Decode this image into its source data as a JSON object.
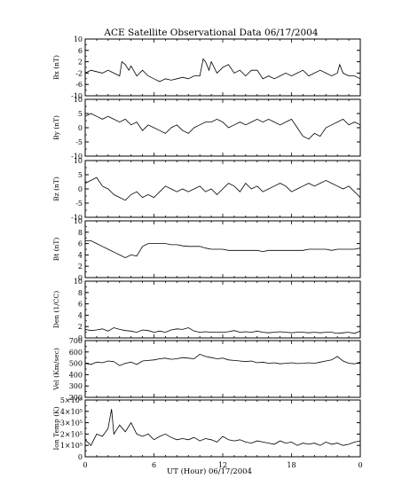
{
  "chart_data": {
    "type": "line",
    "title": "ACE Satellite Observational Data   06/17/2004",
    "xlabel": "UT (Hour)   06/17/2004",
    "x_range": [
      0,
      24
    ],
    "x_tick_labels": [
      "0",
      "6",
      "12",
      "18",
      "0"
    ],
    "grid": false,
    "panels": [
      {
        "id": "bx",
        "ylabel": "Bx (nT)",
        "ylim": [
          -10,
          10
        ],
        "y_tick_labels": [
          "10",
          "6",
          "2",
          "-2",
          "-6",
          "-10"
        ],
        "series": [
          {
            "x": [
              0,
              0.5,
              1,
              1.5,
              2,
              2.5,
              3,
              3.2,
              3.5,
              3.8,
              4,
              4.5,
              5,
              5.5,
              6,
              6.5,
              7,
              7.5,
              8,
              8.5,
              9,
              9.5,
              10,
              10.3,
              10.5,
              10.8,
              11,
              11.5,
              12,
              12.5,
              13,
              13.5,
              14,
              14.5,
              15,
              15.5,
              16,
              16.5,
              17,
              17.5,
              18,
              18.5,
              19,
              19.5,
              20,
              20.5,
              21,
              21.5,
              22,
              22.2,
              22.5,
              23,
              23.5,
              24
            ],
            "y": [
              -2,
              -1,
              -1.5,
              -2,
              -1,
              -2,
              -3,
              2,
              1,
              -1,
              0.5,
              -3,
              -1,
              -3,
              -4,
              -5,
              -4,
              -4.5,
              -4,
              -3.5,
              -4,
              -3,
              -3,
              3,
              2,
              -1,
              2,
              -2,
              0,
              1,
              -2,
              -1,
              -3,
              -1,
              -1,
              -4,
              -3,
              -4,
              -3,
              -2,
              -3,
              -2,
              -1,
              -3,
              -2,
              -1,
              -2,
              -3,
              -2,
              1,
              -2,
              -3,
              -3,
              -4
            ]
          }
        ]
      },
      {
        "id": "by",
        "ylabel": "By (nT)",
        "ylim": [
          -10,
          10
        ],
        "y_tick_labels": [
          "10",
          "5",
          "0",
          "-5",
          "-10"
        ],
        "series": [
          {
            "x": [
              0,
              0.5,
              1,
              1.5,
              2,
              2.5,
              3,
              3.5,
              4,
              4.5,
              5,
              5.5,
              6,
              6.5,
              7,
              7.5,
              8,
              8.5,
              9,
              9.5,
              10,
              10.5,
              11,
              11.5,
              12,
              12.5,
              13,
              13.5,
              14,
              14.5,
              15,
              15.5,
              16,
              16.5,
              17,
              17.5,
              18,
              18.5,
              19,
              19.5,
              20,
              20.5,
              21,
              21.5,
              22,
              22.5,
              23,
              23.5,
              24
            ],
            "y": [
              4,
              5,
              4,
              3,
              4,
              3,
              2,
              3,
              1,
              2,
              -1,
              1,
              0,
              -1,
              -2,
              0,
              1,
              -1,
              -2,
              0,
              1,
              2,
              2,
              3,
              2,
              0,
              1,
              2,
              1,
              2,
              3,
              2,
              3,
              2,
              1,
              2,
              3,
              0,
              -3,
              -4,
              -2,
              -3,
              0,
              1,
              2,
              3,
              1,
              2,
              1
            ]
          }
        ]
      },
      {
        "id": "bz",
        "ylabel": "Bz (nT)",
        "ylim": [
          -10,
          10
        ],
        "y_tick_labels": [
          "10",
          "5",
          "0",
          "-5",
          "-10"
        ],
        "series": [
          {
            "x": [
              0,
              0.5,
              1,
              1.5,
              2,
              2.5,
              3,
              3.5,
              4,
              4.5,
              5,
              5.5,
              6,
              6.5,
              7,
              7.5,
              8,
              8.5,
              9,
              9.5,
              10,
              10.5,
              11,
              11.5,
              12,
              12.5,
              13,
              13.5,
              14,
              14.5,
              15,
              15.5,
              16,
              16.5,
              17,
              17.5,
              18,
              18.5,
              19,
              19.5,
              20,
              20.5,
              21,
              21.5,
              22,
              22.5,
              23,
              23.5,
              24
            ],
            "y": [
              2,
              3,
              4,
              1,
              0,
              -2,
              -3,
              -4,
              -2,
              -1,
              -3,
              -2,
              -3,
              -1,
              1,
              0,
              -1,
              0,
              -1,
              0,
              1,
              -1,
              0,
              -2,
              0,
              2,
              1,
              -1,
              2,
              0,
              1,
              -1,
              0,
              1,
              2,
              1,
              -1,
              0,
              1,
              2,
              1,
              2,
              3,
              2,
              1,
              0,
              1,
              -1,
              -3
            ]
          }
        ]
      },
      {
        "id": "bt",
        "ylabel": "Bt (nT)",
        "ylim": [
          0,
          10
        ],
        "y_tick_labels": [
          "10",
          "8",
          "6",
          "4",
          "2",
          "0"
        ],
        "series": [
          {
            "x": [
              0,
              0.5,
              1,
              1.5,
              2,
              2.5,
              3,
              3.5,
              4,
              4.5,
              5,
              5.5,
              6,
              6.5,
              7,
              7.5,
              8,
              8.5,
              9,
              9.5,
              10,
              10.5,
              11,
              11.5,
              12,
              12.5,
              13,
              13.5,
              14,
              14.5,
              15,
              15.5,
              16,
              16.5,
              17,
              17.5,
              18,
              18.5,
              19,
              19.5,
              20,
              20.5,
              21,
              21.5,
              22,
              22.5,
              23,
              23.5,
              24
            ],
            "y": [
              6.5,
              6.5,
              6,
              5.5,
              5,
              4.5,
              4,
              3.5,
              4,
              3.8,
              5.5,
              6,
              6,
              6,
              6,
              5.8,
              5.8,
              5.6,
              5.5,
              5.5,
              5.5,
              5.2,
              5,
              5,
              5,
              4.8,
              4.8,
              4.8,
              4.8,
              4.8,
              4.8,
              4.6,
              4.8,
              4.8,
              4.8,
              4.8,
              4.8,
              4.8,
              4.8,
              5,
              5,
              5,
              5,
              4.8,
              5,
              5,
              5,
              5,
              5.2
            ]
          }
        ]
      },
      {
        "id": "den",
        "ylabel": "Den (1/CC)",
        "ylim": [
          0,
          10
        ],
        "y_tick_labels": [
          "10",
          "8",
          "6",
          "4",
          "2",
          "0"
        ],
        "series": [
          {
            "x": [
              0,
              0.5,
              1,
              1.5,
              2,
              2.5,
              3,
              3.5,
              4,
              4.5,
              5,
              5.5,
              6,
              6.5,
              7,
              7.5,
              8,
              8.5,
              9,
              9.5,
              10,
              10.5,
              11,
              11.5,
              12,
              12.5,
              13,
              13.5,
              14,
              14.5,
              15,
              15.5,
              16,
              16.5,
              17,
              17.5,
              18,
              18.5,
              19,
              19.5,
              20,
              20.5,
              21,
              21.5,
              22,
              22.5,
              23,
              23.5,
              24
            ],
            "y": [
              1.5,
              1.3,
              1.4,
              1.6,
              1.2,
              1.8,
              1.5,
              1.3,
              1.2,
              1,
              1.4,
              1.3,
              1,
              1.2,
              1,
              1.4,
              1.6,
              1.5,
              1.8,
              1.2,
              1,
              1.1,
              1,
              1,
              1,
              1.1,
              1.3,
              1,
              1.1,
              1,
              1.2,
              1,
              0.9,
              1,
              1.1,
              1,
              0.9,
              1,
              1,
              0.9,
              1,
              0.9,
              1,
              1,
              0.8,
              0.9,
              1,
              0.8,
              1.2
            ]
          }
        ]
      },
      {
        "id": "vel",
        "ylabel": "Vel (Km/sec)",
        "ylim": [
          200,
          700
        ],
        "y_tick_labels": [
          "700",
          "600",
          "500",
          "400",
          "300",
          "200"
        ],
        "series": [
          {
            "x": [
              0,
              0.5,
              1,
              1.5,
              2,
              2.5,
              3,
              3.5,
              4,
              4.5,
              5,
              5.5,
              6,
              6.5,
              7,
              7.5,
              8,
              8.5,
              9,
              9.5,
              10,
              10.5,
              11,
              11.5,
              12,
              12.5,
              13,
              13.5,
              14,
              14.5,
              15,
              15.5,
              16,
              16.5,
              17,
              17.5,
              18,
              18.5,
              19,
              19.5,
              20,
              20.5,
              21,
              21.5,
              22,
              22.5,
              23,
              23.5,
              24
            ],
            "y": [
              500,
              490,
              510,
              505,
              520,
              515,
              480,
              500,
              510,
              490,
              520,
              525,
              530,
              540,
              545,
              535,
              540,
              550,
              545,
              540,
              580,
              560,
              550,
              540,
              545,
              530,
              525,
              520,
              515,
              520,
              505,
              510,
              500,
              505,
              495,
              500,
              505,
              498,
              500,
              505,
              500,
              510,
              520,
              530,
              560,
              520,
              500,
              495,
              510
            ]
          }
        ]
      },
      {
        "id": "temp",
        "ylabel": "Ion Temp (K)",
        "ylim": [
          0,
          500000
        ],
        "y_tick_labels": [
          "5×10⁵",
          "4×10⁵",
          "3×10⁵",
          "2×10⁵",
          "1×10⁵",
          "0"
        ],
        "series": [
          {
            "x": [
              0,
              0.5,
              1,
              1.5,
              2,
              2.3,
              2.5,
              3,
              3.5,
              4,
              4.5,
              5,
              5.5,
              6,
              6.5,
              7,
              7.5,
              8,
              8.5,
              9,
              9.5,
              10,
              10.5,
              11,
              11.5,
              12,
              12.5,
              13,
              13.5,
              14,
              14.5,
              15,
              15.5,
              16,
              16.5,
              17,
              17.5,
              18,
              18.5,
              19,
              19.5,
              20,
              20.5,
              21,
              21.5,
              22,
              22.5,
              23,
              23.5,
              24
            ],
            "y": [
              150000,
              100000,
              200000,
              180000,
              250000,
              420000,
              200000,
              280000,
              220000,
              300000,
              200000,
              180000,
              200000,
              150000,
              180000,
              200000,
              170000,
              150000,
              160000,
              150000,
              170000,
              140000,
              160000,
              150000,
              130000,
              180000,
              150000,
              140000,
              150000,
              130000,
              120000,
              140000,
              130000,
              120000,
              110000,
              140000,
              120000,
              130000,
              100000,
              120000,
              110000,
              120000,
              100000,
              130000,
              110000,
              120000,
              100000,
              110000,
              130000,
              140000
            ]
          }
        ]
      }
    ]
  }
}
